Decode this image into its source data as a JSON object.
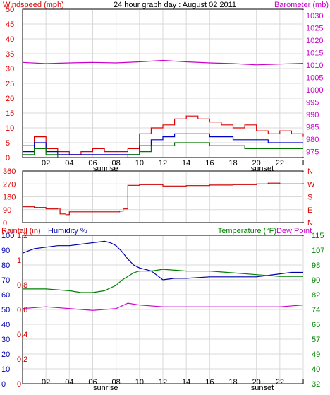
{
  "header": {
    "windspeed_label": "Windspeed (mph)",
    "title": "24 hour graph day : August 02 2011",
    "barometer_label": "Barometer (mb)"
  },
  "colors": {
    "wind": "#dd0000",
    "wind_avg": "#0000cc",
    "wind_low": "#007700",
    "barometer": "#cc00cc",
    "direction": "#cc0000",
    "humidity": "#0000aa",
    "temperature": "#008000",
    "dewpoint": "#cc00cc",
    "rain": "#dd0000",
    "grid": "#d9d9d9"
  },
  "time_axis": {
    "ticks": [
      "02",
      "04",
      "06",
      "08",
      "10",
      "12",
      "14",
      "16",
      "18",
      "20",
      "22",
      "I"
    ],
    "sunrise_label": "sunrise",
    "sunset_label": "sunset",
    "sunrise_hour": 7.1,
    "sunset_hour": 20.5
  },
  "panel1": {
    "left_ticks": [
      "50",
      "45",
      "40",
      "35",
      "30",
      "25",
      "20",
      "15",
      "10",
      "5",
      "0"
    ],
    "right_ticks": [
      "1030",
      "1025",
      "1020",
      "1015",
      "1010",
      "1005",
      "1000",
      "995",
      "990",
      "985",
      "980",
      "975"
    ]
  },
  "panel2": {
    "left_ticks": [
      "360",
      "270",
      "180",
      "90",
      "0"
    ],
    "right_ticks": [
      "N",
      "W",
      "S",
      "E",
      "N"
    ]
  },
  "panel3": {
    "rainfall_label": "Rainfall (in)",
    "humidity_label": "Humidity %",
    "temperature_label": "Temperature (°F)",
    "dewpoint_label": "Dew Point",
    "humidity_ticks": [
      "100",
      "90",
      "80",
      "70",
      "60",
      "50",
      "40",
      "30",
      "20",
      "10",
      "0"
    ],
    "rain_ticks": [
      "1.2",
      "1",
      "0.8",
      "0.6",
      "0.4",
      "0.2",
      "0"
    ],
    "temp_ticks": [
      "115",
      "107",
      "98",
      "90",
      "82",
      "74",
      "65",
      "57",
      "49",
      "40",
      "32"
    ]
  },
  "chart_data": [
    {
      "type": "line",
      "x_unit": "hour",
      "xlim": [
        0,
        24
      ],
      "left_axis": {
        "label": "Windspeed (mph)",
        "ylim": [
          0,
          50
        ]
      },
      "right_axis": {
        "label": "Barometer (mb)",
        "ylim": [
          972.5,
          1032.5
        ]
      },
      "series": [
        {
          "axis": "left",
          "x": [
            0,
            1,
            2,
            3,
            4,
            5,
            6,
            7,
            8,
            9,
            10,
            11,
            12,
            13,
            14,
            15,
            16,
            17,
            18,
            19,
            20,
            21,
            22,
            23,
            24
          ],
          "values": [
            4,
            7,
            3,
            2,
            1,
            2,
            3,
            2,
            2,
            3,
            8,
            10,
            11,
            13,
            14,
            13,
            12,
            11,
            10,
            11,
            9,
            8,
            9,
            8,
            7
          ]
        },
        {
          "axis": "left",
          "x": [
            0,
            1,
            2,
            3,
            4,
            5,
            6,
            7,
            8,
            9,
            10,
            11,
            12,
            13,
            14,
            15,
            16,
            17,
            18,
            19,
            20,
            21,
            22,
            23,
            24
          ],
          "values": [
            2,
            5,
            2,
            1,
            1,
            1,
            1,
            1,
            1,
            1,
            4,
            6,
            7,
            8,
            8,
            8,
            7,
            7,
            6,
            6,
            6,
            5,
            5,
            5,
            5
          ]
        },
        {
          "axis": "left",
          "x": [
            0,
            1,
            2,
            3,
            4,
            5,
            6,
            7,
            8,
            9,
            10,
            11,
            12,
            13,
            14,
            15,
            16,
            17,
            18,
            19,
            20,
            21,
            22,
            23,
            24
          ],
          "values": [
            1,
            3,
            1,
            0,
            0,
            0,
            0,
            0,
            0,
            1,
            2,
            4,
            4,
            5,
            5,
            5,
            4,
            4,
            4,
            3,
            3,
            3,
            3,
            3,
            3
          ]
        },
        {
          "axis": "right",
          "x": [
            0,
            2,
            4,
            6,
            8,
            10,
            12,
            14,
            16,
            18,
            20,
            22,
            24
          ],
          "values": [
            1011,
            1010.5,
            1010.8,
            1011,
            1010.8,
            1011.2,
            1011.8,
            1011.2,
            1010.8,
            1010.5,
            1010,
            1010.3,
            1010.6
          ]
        }
      ]
    },
    {
      "type": "line",
      "x_unit": "hour",
      "xlim": [
        0,
        24
      ],
      "left_axis": {
        "label": "",
        "ylim": [
          0,
          360
        ]
      },
      "series": [
        {
          "x": [
            0,
            1,
            2,
            3,
            3.2,
            3.7,
            4,
            5,
            6,
            7,
            8,
            8.3,
            8.6,
            9,
            10,
            12,
            14,
            16,
            18,
            20,
            21,
            22,
            24
          ],
          "values": [
            110,
            105,
            95,
            100,
            60,
            55,
            75,
            75,
            75,
            75,
            75,
            80,
            95,
            260,
            265,
            255,
            258,
            262,
            265,
            270,
            275,
            270,
            275
          ]
        }
      ]
    },
    {
      "type": "line",
      "x_unit": "hour",
      "xlim": [
        0,
        24
      ],
      "axes": {
        "humidity": {
          "label": "Humidity %",
          "ylim": [
            0,
            100
          ]
        },
        "rain": {
          "label": "Rainfall (in)",
          "ylim": [
            0,
            1.2
          ]
        },
        "temperature": {
          "label": "Temperature (°F)",
          "ylim": [
            32,
            115
          ]
        }
      },
      "series": [
        {
          "axis": "humidity",
          "x": [
            0,
            1,
            2,
            3,
            4,
            5,
            6,
            7,
            7.5,
            8,
            8.5,
            9,
            9.5,
            10,
            11,
            12,
            13,
            14,
            16,
            18,
            20,
            22,
            23,
            24
          ],
          "values": [
            88,
            91,
            92,
            93,
            93,
            94,
            95,
            96,
            95,
            93,
            89,
            84,
            80,
            78,
            76,
            70,
            71,
            71,
            72,
            72,
            72,
            74,
            75,
            75
          ]
        },
        {
          "axis": "temperature",
          "x": [
            0,
            2,
            4,
            5,
            6,
            7,
            8,
            8.5,
            9,
            9.5,
            10,
            11,
            12,
            14,
            16,
            18,
            20,
            22,
            24
          ],
          "values": [
            85,
            85,
            84,
            83,
            83,
            84,
            87,
            90,
            92,
            94,
            95,
            95,
            96,
            95,
            95,
            94,
            93,
            92,
            92
          ]
        },
        {
          "axis": "temperature",
          "x": [
            0,
            2,
            4,
            6,
            8,
            9,
            10,
            12,
            14,
            16,
            18,
            20,
            22,
            24
          ],
          "values": [
            74,
            75,
            74,
            73,
            74,
            77,
            76,
            75,
            75,
            75,
            75,
            75,
            75,
            76
          ]
        },
        {
          "axis": "rain",
          "x": [
            0,
            24
          ],
          "values": [
            0,
            0
          ]
        }
      ]
    }
  ]
}
